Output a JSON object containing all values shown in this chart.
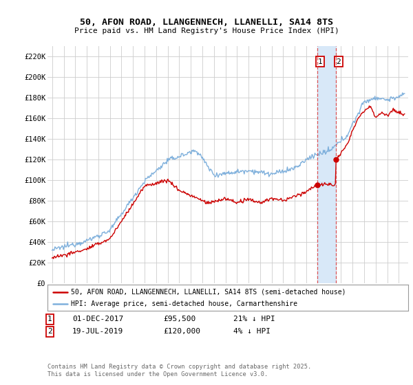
{
  "title": "50, AFON ROAD, LLANGENNECH, LLANELLI, SA14 8TS",
  "subtitle": "Price paid vs. HM Land Registry's House Price Index (HPI)",
  "legend_line1": "50, AFON ROAD, LLANGENNECH, LLANELLI, SA14 8TS (semi-detached house)",
  "legend_line2": "HPI: Average price, semi-detached house, Carmarthenshire",
  "ylim": [
    0,
    230000
  ],
  "ytick_values": [
    0,
    20000,
    40000,
    60000,
    80000,
    100000,
    120000,
    140000,
    160000,
    180000,
    200000,
    220000
  ],
  "ytick_labels": [
    "£0",
    "£20K",
    "£40K",
    "£60K",
    "£80K",
    "£100K",
    "£120K",
    "£140K",
    "£160K",
    "£180K",
    "£200K",
    "£220K"
  ],
  "transaction1": {
    "label": "1",
    "date": "01-DEC-2017",
    "price": 95500,
    "hpi_diff": "21% ↓ HPI",
    "x": 2017.92
  },
  "transaction2": {
    "label": "2",
    "date": "19-JUL-2019",
    "price": 120000,
    "hpi_diff": "4% ↓ HPI",
    "x": 2019.54
  },
  "sale_color": "#cc0000",
  "hpi_color": "#7fb0dc",
  "vline_color": "#dd4444",
  "background_color": "#ffffff",
  "grid_color": "#cccccc",
  "footer": "Contains HM Land Registry data © Crown copyright and database right 2025.\nThis data is licensed under the Open Government Licence v3.0.",
  "box1_color": "#cc0000",
  "box2_color": "#cc0000",
  "span_color": "#d8e8f8",
  "xlim_left": 1994.6,
  "xlim_right": 2025.8
}
